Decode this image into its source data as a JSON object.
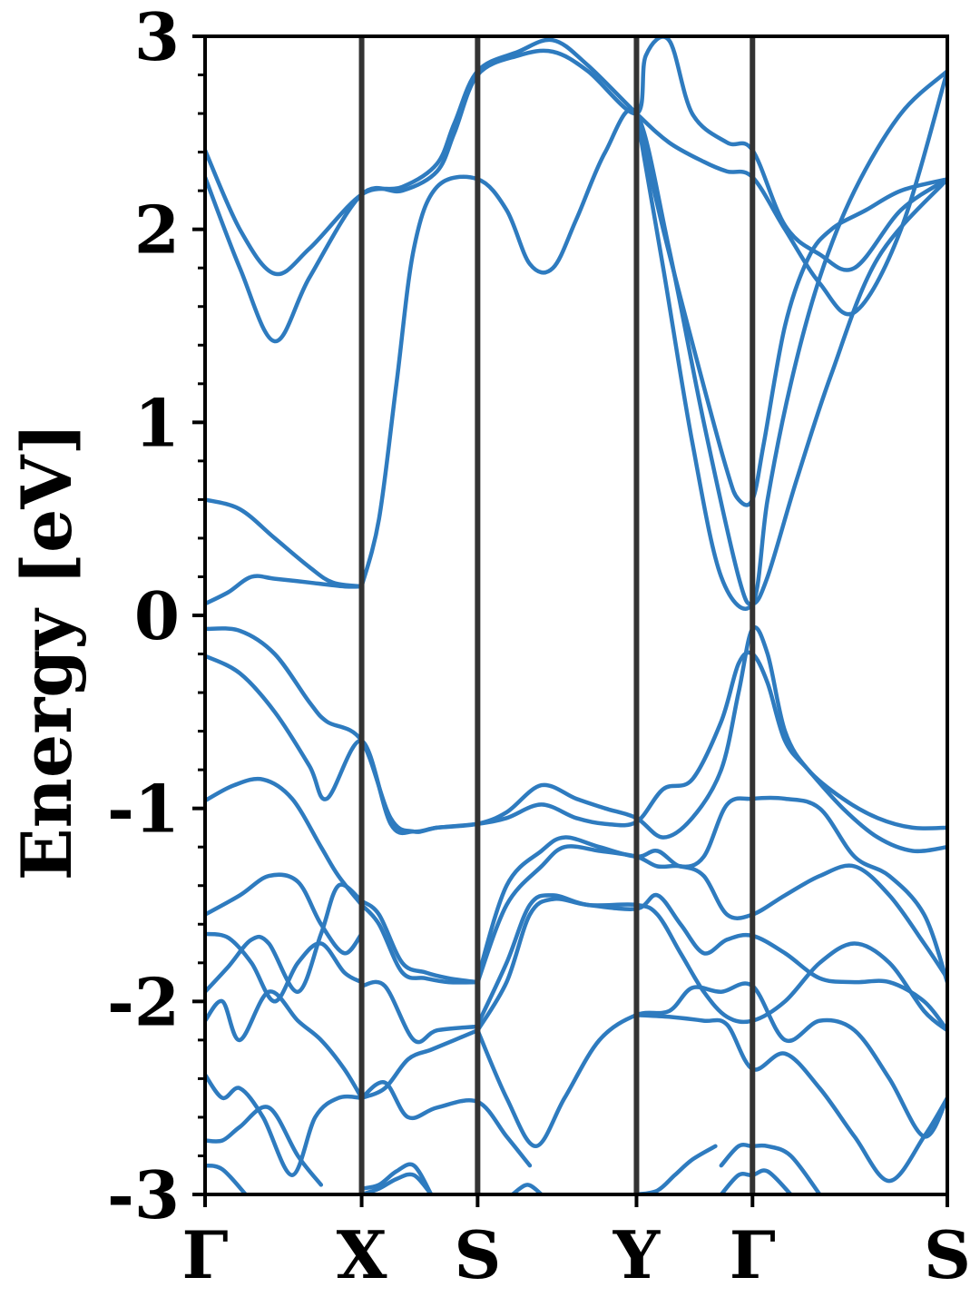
{
  "chart_data": {
    "type": "line",
    "title": "",
    "xlabel": "",
    "ylabel": "Energy [eV]",
    "ylim": [
      -3,
      3
    ],
    "yticks": [
      3,
      2,
      1,
      0,
      -1,
      -2,
      -3
    ],
    "ytick_labels": [
      "3",
      "2",
      "1",
      "0",
      "-1",
      "-2",
      "-3"
    ],
    "ytick_minor_step": 0.2,
    "xlim": [
      0,
      6.4
    ],
    "kpoints": [
      {
        "label": "Γ",
        "x": 0
      },
      {
        "label": "X",
        "x": 1.35
      },
      {
        "label": "S",
        "x": 2.35
      },
      {
        "label": "Y",
        "x": 3.72
      },
      {
        "label": "Γ",
        "x": 4.72
      },
      {
        "label": "S",
        "x": 6.4
      }
    ],
    "grid": false,
    "line_color": "#2e7bbf",
    "kpoint_line_color": "#333333",
    "series": [
      {
        "x": [
          0,
          0.3,
          0.6,
          0.9,
          1.35,
          1.7,
          2.0,
          2.15,
          2.35,
          2.7,
          3.0,
          3.3,
          3.72,
          3.8,
          4.0,
          4.2,
          4.5,
          4.72,
          5.0,
          5.3,
          5.6,
          6.0,
          6.4
        ],
        "values": [
          2.27,
          1.8,
          1.42,
          1.75,
          2.18,
          2.2,
          2.3,
          2.5,
          2.8,
          2.9,
          2.92,
          2.82,
          2.6,
          2.9,
          2.98,
          2.6,
          2.45,
          2.41,
          2.02,
          1.87,
          1.8,
          2.1,
          2.26
        ]
      },
      {
        "x": [
          0,
          0.3,
          0.6,
          0.9,
          1.35,
          1.7,
          2.0,
          2.15,
          2.35,
          2.7,
          3.0,
          3.3,
          3.72,
          4.0,
          4.3,
          4.5,
          4.72,
          5.0,
          5.3,
          5.6,
          6.0,
          6.4
        ],
        "values": [
          2.41,
          2.0,
          1.77,
          1.9,
          2.18,
          2.22,
          2.34,
          2.55,
          2.82,
          2.92,
          2.98,
          2.85,
          2.6,
          2.45,
          2.35,
          2.3,
          2.27,
          2.0,
          1.72,
          1.57,
          2.0,
          2.82
        ]
      },
      {
        "x": [
          1.35,
          1.5,
          1.65,
          1.8,
          2.0,
          2.35,
          2.6,
          2.8,
          3.0,
          3.2,
          3.45,
          3.72,
          4.0,
          4.3,
          4.6,
          4.72,
          4.85,
          5.1,
          5.4,
          5.8,
          6.4
        ],
        "values": [
          0.15,
          0.5,
          1.2,
          1.9,
          2.22,
          2.26,
          2.1,
          1.82,
          1.8,
          2.05,
          2.4,
          2.6,
          1.9,
          1.0,
          0.2,
          0.06,
          0.2,
          0.7,
          1.25,
          1.85,
          2.26
        ]
      },
      {
        "x": [
          3.72,
          3.95,
          4.2,
          4.45,
          4.72,
          4.85,
          5.05,
          5.3,
          5.6,
          6.0,
          6.4
        ],
        "values": [
          2.6,
          1.8,
          0.9,
          0.2,
          0.06,
          0.6,
          1.2,
          1.75,
          2.2,
          2.6,
          2.82
        ]
      },
      {
        "x": [
          3.72,
          3.95,
          4.25,
          4.5,
          4.6,
          4.72,
          4.82,
          5.0,
          5.2,
          5.4,
          5.7,
          6.0,
          6.4
        ],
        "values": [
          2.6,
          2.0,
          1.3,
          0.75,
          0.6,
          0.6,
          0.9,
          1.5,
          1.85,
          2.0,
          2.1,
          2.2,
          2.26
        ]
      },
      {
        "x": [
          0,
          0.3,
          0.6,
          0.9,
          1.1,
          1.35
        ],
        "values": [
          0.6,
          0.55,
          0.4,
          0.25,
          0.17,
          0.15
        ]
      },
      {
        "x": [
          0,
          0.2,
          0.4,
          0.6,
          0.9,
          1.2,
          1.35
        ],
        "values": [
          0.06,
          0.12,
          0.2,
          0.19,
          0.17,
          0.15,
          0.15
        ]
      },
      {
        "x": [
          0,
          0.3,
          0.6,
          0.9,
          1.05,
          1.35,
          1.6,
          1.8,
          2.0,
          2.35,
          2.6,
          2.9,
          3.2,
          3.45,
          3.72,
          3.95,
          4.2,
          4.45,
          4.6,
          4.72,
          4.85,
          5.0,
          5.2,
          5.5,
          5.8,
          6.1,
          6.4
        ],
        "values": [
          -0.07,
          -0.08,
          -0.2,
          -0.45,
          -0.55,
          -0.65,
          -1.05,
          -1.12,
          -1.1,
          -1.08,
          -1.02,
          -0.88,
          -0.95,
          -1.0,
          -1.05,
          -1.15,
          -1.05,
          -0.8,
          -0.4,
          -0.07,
          -0.2,
          -0.6,
          -0.8,
          -0.95,
          -1.05,
          -1.1,
          -1.1
        ]
      },
      {
        "x": [
          0,
          0.3,
          0.6,
          0.9,
          1.05,
          1.35,
          1.6,
          1.8,
          2.0,
          2.35,
          2.6,
          2.9,
          3.2,
          3.45,
          3.72,
          3.95,
          4.2,
          4.45,
          4.6,
          4.72,
          4.85,
          5.0,
          5.2,
          5.5,
          5.8,
          6.1,
          6.4
        ],
        "values": [
          -0.21,
          -0.3,
          -0.5,
          -0.78,
          -0.95,
          -0.65,
          -1.08,
          -1.12,
          -1.1,
          -1.08,
          -1.05,
          -0.98,
          -1.05,
          -1.08,
          -1.07,
          -0.9,
          -0.85,
          -0.55,
          -0.25,
          -0.2,
          -0.35,
          -0.65,
          -0.8,
          -1.0,
          -1.15,
          -1.22,
          -1.2
        ]
      },
      {
        "x": [
          0,
          0.25,
          0.5,
          0.75,
          1.0,
          1.15,
          1.35
        ],
        "values": [
          -0.96,
          -0.88,
          -0.85,
          -0.95,
          -1.2,
          -1.35,
          -1.5
        ]
      },
      {
        "x": [
          0,
          0.3,
          0.55,
          0.8,
          1.0,
          1.2,
          1.35
        ],
        "values": [
          -1.55,
          -1.45,
          -1.35,
          -1.38,
          -1.6,
          -1.75,
          -1.65
        ]
      },
      {
        "x": [
          1.35,
          1.5,
          1.7,
          1.9,
          2.1,
          2.35
        ],
        "values": [
          -1.5,
          -1.6,
          -1.85,
          -1.88,
          -1.9,
          -1.9
        ]
      },
      {
        "x": [
          1.35,
          1.5,
          1.7,
          1.9,
          2.1,
          2.35
        ],
        "values": [
          -1.48,
          -1.55,
          -1.8,
          -1.85,
          -1.88,
          -1.9
        ]
      },
      {
        "x": [
          0,
          0.2,
          0.4,
          0.6,
          0.8,
          1.0,
          1.2,
          1.35
        ],
        "values": [
          -1.65,
          -1.67,
          -1.8,
          -2.0,
          -1.8,
          -1.7,
          -1.85,
          -1.9
        ]
      },
      {
        "x": [
          0,
          0.2,
          0.4,
          0.55,
          0.8,
          1.0,
          1.15,
          1.35
        ],
        "values": [
          -1.95,
          -1.82,
          -1.68,
          -1.7,
          -1.95,
          -1.65,
          -1.4,
          -1.48
        ]
      },
      {
        "x": [
          2.35,
          2.6,
          2.9,
          3.1,
          3.4,
          3.72,
          3.9,
          4.1,
          4.3,
          4.5,
          4.72,
          5.0,
          5.3,
          5.6,
          5.9,
          6.2,
          6.4
        ],
        "values": [
          -1.9,
          -1.5,
          -1.3,
          -1.2,
          -1.22,
          -1.25,
          -1.3,
          -1.3,
          -1.35,
          -1.55,
          -1.55,
          -1.45,
          -1.35,
          -1.3,
          -1.45,
          -1.7,
          -1.88
        ]
      },
      {
        "x": [
          2.35,
          2.6,
          2.9,
          3.1,
          3.4,
          3.72,
          3.9,
          4.1,
          4.3,
          4.5,
          4.72,
          5.0,
          5.3,
          5.6,
          5.9,
          6.2,
          6.4
        ],
        "values": [
          -1.88,
          -1.4,
          -1.22,
          -1.15,
          -1.2,
          -1.25,
          -1.22,
          -1.3,
          -1.25,
          -0.98,
          -0.95,
          -0.95,
          -1.0,
          -1.25,
          -1.35,
          -1.55,
          -1.9
        ]
      },
      {
        "x": [
          2.35,
          2.6,
          2.8,
          3.0,
          3.3,
          3.72,
          3.9,
          4.1,
          4.3,
          4.5,
          4.72,
          5.0,
          5.3,
          5.6,
          5.9,
          6.2,
          6.4
        ],
        "values": [
          -2.15,
          -1.9,
          -1.55,
          -1.47,
          -1.5,
          -1.52,
          -1.45,
          -1.6,
          -1.75,
          -1.68,
          -1.66,
          -1.75,
          -1.88,
          -1.9,
          -1.9,
          -2.0,
          -2.15
        ]
      },
      {
        "x": [
          2.35,
          2.6,
          2.8,
          3.0,
          3.3,
          3.72,
          3.9,
          4.1,
          4.3,
          4.5,
          4.72,
          5.0,
          5.3,
          5.6,
          5.9,
          6.2,
          6.4
        ],
        "values": [
          -2.12,
          -1.8,
          -1.5,
          -1.45,
          -1.5,
          -1.5,
          -1.55,
          -1.75,
          -1.95,
          -2.08,
          -2.1,
          -2.0,
          -1.8,
          -1.7,
          -1.8,
          -2.05,
          -2.15
        ]
      },
      {
        "x": [
          1.35,
          1.55,
          1.8,
          2.0,
          2.35
        ],
        "values": [
          -1.92,
          -1.92,
          -2.2,
          -2.15,
          -2.13
        ]
      },
      {
        "x": [
          0,
          0.15,
          0.3,
          0.55,
          0.8,
          1.0,
          1.2,
          1.35
        ],
        "values": [
          -2.1,
          -2.0,
          -2.2,
          -1.95,
          -2.1,
          -2.2,
          -2.35,
          -2.5
        ]
      },
      {
        "x": [
          1.35,
          1.55,
          1.75,
          1.95,
          2.15,
          2.35
        ],
        "values": [
          -2.5,
          -2.45,
          -2.3,
          -2.25,
          -2.2,
          -2.15
        ]
      },
      {
        "x": [
          0,
          0.15,
          0.3,
          0.5,
          0.75,
          0.95,
          1.15,
          1.35
        ],
        "values": [
          -2.38,
          -2.5,
          -2.45,
          -2.6,
          -2.9,
          -2.6,
          -2.5,
          -2.5
        ]
      },
      {
        "x": [
          1.35,
          1.55,
          1.75,
          2.0,
          2.35,
          2.6,
          2.8
        ],
        "values": [
          -2.5,
          -2.42,
          -2.6,
          -2.55,
          -2.52,
          -2.7,
          -2.85
        ]
      },
      {
        "x": [
          2.35,
          2.6,
          2.85,
          3.1,
          3.4,
          3.72,
          4.0,
          4.2,
          4.45,
          4.72,
          5.0,
          5.3,
          5.6,
          5.9,
          6.2,
          6.4
        ],
        "values": [
          -2.15,
          -2.5,
          -2.75,
          -2.5,
          -2.2,
          -2.07,
          -2.05,
          -1.93,
          -1.95,
          -1.92,
          -2.2,
          -2.1,
          -2.15,
          -2.4,
          -2.7,
          -2.5
        ]
      },
      {
        "x": [
          3.72,
          4.0,
          4.3,
          4.5,
          4.72,
          5.0,
          5.3,
          5.6,
          5.9,
          6.2,
          6.4
        ],
        "values": [
          -2.07,
          -2.08,
          -2.1,
          -2.12,
          -2.35,
          -2.27,
          -2.45,
          -2.7,
          -2.93,
          -2.7,
          -2.5
        ]
      },
      {
        "x": [
          0,
          0.15,
          0.3,
          0.55,
          0.8,
          1.0
        ],
        "values": [
          -2.72,
          -2.72,
          -2.65,
          -2.55,
          -2.8,
          -2.95
        ]
      },
      {
        "x": [
          4.45,
          4.6,
          4.72,
          4.85,
          5.05,
          5.3
        ],
        "values": [
          -2.85,
          -2.75,
          -2.75,
          -2.75,
          -2.8,
          -3.0
        ]
      },
      {
        "x": [
          4.45,
          4.6,
          4.72,
          4.85,
          5.05
        ],
        "values": [
          -3.0,
          -2.9,
          -2.9,
          -2.88,
          -3.0
        ]
      },
      {
        "x": [
          1.35,
          1.5,
          1.65,
          1.8,
          1.95
        ],
        "values": [
          -2.97,
          -2.95,
          -2.88,
          -2.85,
          -3.0
        ]
      },
      {
        "x": [
          1.35,
          1.5,
          1.65,
          1.8,
          1.95
        ],
        "values": [
          -3.0,
          -2.97,
          -2.92,
          -2.9,
          -3.0
        ]
      },
      {
        "x": [
          3.72,
          3.9,
          4.05,
          4.2,
          4.4
        ],
        "values": [
          -3.0,
          -2.98,
          -2.9,
          -2.82,
          -2.75
        ]
      },
      {
        "x": [
          0,
          0.15,
          0.35
        ],
        "values": [
          -2.85,
          -2.87,
          -3.0
        ]
      },
      {
        "x": [
          2.65,
          2.78,
          2.9
        ],
        "values": [
          -3.0,
          -2.95,
          -3.0
        ]
      }
    ]
  }
}
